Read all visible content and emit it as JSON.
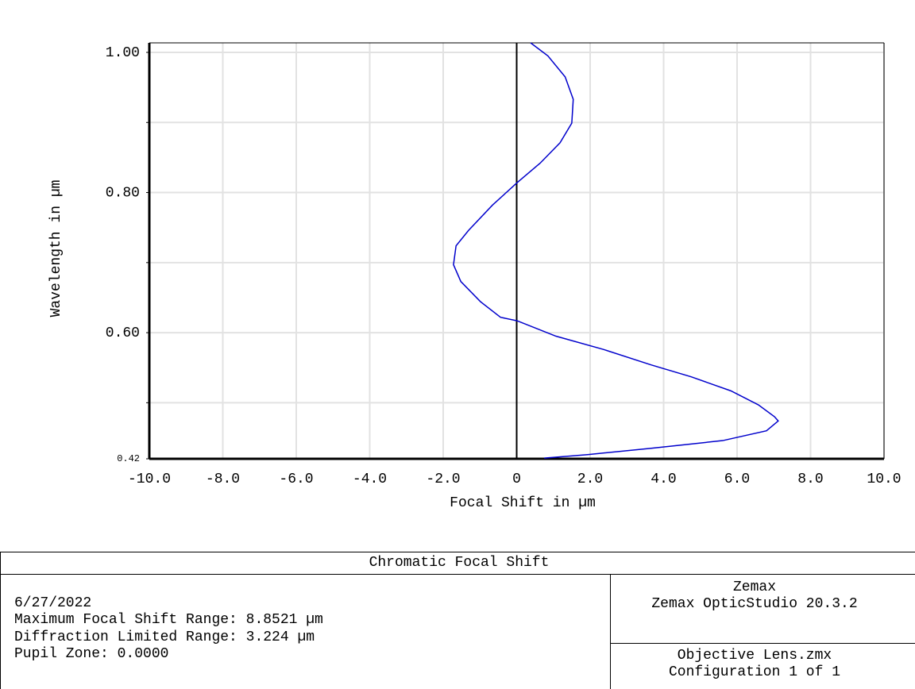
{
  "chart_data": {
    "type": "line",
    "title": "Chromatic Focal Shift",
    "xlabel": "Focal Shift in µm",
    "ylabel": "Wavelength in µm",
    "xlim": [
      -10,
      10
    ],
    "xticks": [
      {
        "value": -10,
        "label": "-10.0"
      },
      {
        "value": -8,
        "label": "-8.0"
      },
      {
        "value": -6,
        "label": "-6.0"
      },
      {
        "value": -4,
        "label": "-4.0"
      },
      {
        "value": -2,
        "label": "-2.0"
      },
      0,
      {
        "value": 2,
        "label": "2.0"
      },
      {
        "value": 4,
        "label": "4.0"
      },
      {
        "value": 6,
        "label": "6.0"
      },
      {
        "value": 8,
        "label": "8.0"
      },
      {
        "value": 10,
        "label": "10.0"
      }
    ],
    "ylim": [
      0.42,
      1.0136
    ],
    "yticks": [
      {
        "value": 0.42,
        "label": "0.42"
      },
      {
        "value": 0.6,
        "label": "0.60"
      },
      {
        "value": 0.8,
        "label": "0.80"
      },
      {
        "value": 1,
        "label": "1.00"
      }
    ],
    "minor_yticks": [
      0.5,
      0.7,
      0.9
    ],
    "grid": true,
    "x": [
      0.38,
      0.85,
      1.32,
      1.54,
      1.5,
      1.18,
      0.64,
      0.01,
      -0.66,
      -1.31,
      -1.65,
      -1.72,
      -1.52,
      -0.98,
      -0.44,
      0.01,
      1.07,
      2.37,
      3.66,
      4.75,
      5.83,
      6.58,
      7.02,
      7.12,
      6.8,
      5.61,
      3.66,
      1.93,
      0.75
    ],
    "series": [
      {
        "color": "#0000cc",
        "values": [
          1.0136,
          0.995,
          0.965,
          0.933,
          0.899,
          0.871,
          0.842,
          0.814,
          0.782,
          0.746,
          0.724,
          0.697,
          0.673,
          0.644,
          0.622,
          0.617,
          0.595,
          0.576,
          0.554,
          0.537,
          0.517,
          0.497,
          0.48,
          0.474,
          0.46,
          0.446,
          0.435,
          0.426,
          0.421
        ]
      }
    ]
  },
  "footer": {
    "left": [
      "6/27/2022",
      "Maximum Focal Shift Range: 8.8521 µm",
      "Diffraction Limited Range: 3.224 µm",
      "Pupil Zone: 0.0000"
    ],
    "right_top": [
      "Zemax",
      "Zemax OpticStudio 20.3.2"
    ],
    "right_bottom": [
      "Objective Lens.zmx",
      "Configuration 1 of 1"
    ]
  }
}
